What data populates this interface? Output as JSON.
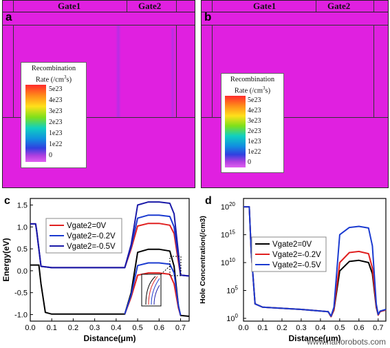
{
  "panels": {
    "a": {
      "label": "a",
      "gates": [
        "Gate1",
        "Gate2"
      ]
    },
    "b": {
      "label": "b",
      "gates": [
        "Gate1",
        "Gate2"
      ]
    }
  },
  "colorbar": {
    "title_line1": "Recombination",
    "title_line2": "Rate (/cm",
    "title_sup": "3",
    "title_end": "s)",
    "ticks": [
      "5e23",
      "4e23",
      "3e23",
      "2e23",
      "1e23",
      "1e22",
      "0"
    ],
    "colors": [
      "#ff2a2a",
      "#ff8c1a",
      "#ffe01a",
      "#7fe01a",
      "#10d0c0",
      "#1090e0",
      "#3040e0",
      "#b040e0"
    ]
  },
  "colors": {
    "device_fill": "#e020e0",
    "red": "#e02020",
    "blue_dark": "#1a1aa8",
    "blue": "#1a3ad0",
    "black": "#000000"
  },
  "watermark": "www.nanorobots.com",
  "chart_data": [
    {
      "panel": "c",
      "type": "line",
      "xlabel": "Distance(μm)",
      "ylabel": "Energy(eV)",
      "xlim": [
        0.0,
        0.74
      ],
      "ylim": [
        -1.15,
        1.65
      ],
      "xticks": [
        "0.0",
        "0.1",
        "0.2",
        "0.3",
        "0.4",
        "0.5",
        "0.6",
        "0.7"
      ],
      "yticks": [
        "-1.0",
        "-0.5",
        "0.0",
        "0.5",
        "1.0",
        "1.5"
      ],
      "legend": [
        "Vgate2=0V",
        "Vgate2=-0.2V",
        "Vgate2=-0.5V"
      ],
      "legend_colors": [
        "#e02020",
        "#1a3ad0",
        "#1a1aa8"
      ],
      "series": [
        {
          "group": "conduction",
          "color": "#e02020",
          "x": [
            0,
            0.025,
            0.03,
            0.05,
            0.1,
            0.3,
            0.44,
            0.47,
            0.5,
            0.55,
            0.6,
            0.65,
            0.67,
            0.69,
            0.7,
            0.74
          ],
          "y": [
            1.07,
            1.07,
            0.9,
            0.1,
            0.07,
            0.07,
            0.07,
            0.5,
            1.02,
            1.08,
            1.08,
            1.04,
            0.85,
            0.2,
            -0.1,
            -0.12
          ]
        },
        {
          "group": "conduction",
          "color": "#1a3ad0",
          "x": [
            0,
            0.025,
            0.03,
            0.05,
            0.1,
            0.3,
            0.44,
            0.47,
            0.5,
            0.55,
            0.6,
            0.65,
            0.67,
            0.69,
            0.7,
            0.74
          ],
          "y": [
            1.07,
            1.07,
            0.9,
            0.1,
            0.07,
            0.07,
            0.07,
            0.55,
            1.2,
            1.27,
            1.27,
            1.24,
            1.0,
            0.3,
            -0.1,
            -0.12
          ]
        },
        {
          "group": "conduction",
          "color": "#1a1aa8",
          "x": [
            0,
            0.025,
            0.03,
            0.05,
            0.1,
            0.3,
            0.44,
            0.47,
            0.5,
            0.55,
            0.6,
            0.65,
            0.67,
            0.69,
            0.7,
            0.74
          ],
          "y": [
            1.07,
            1.07,
            0.9,
            0.1,
            0.07,
            0.07,
            0.07,
            0.6,
            1.5,
            1.57,
            1.57,
            1.54,
            1.3,
            0.4,
            -0.1,
            -0.12
          ]
        },
        {
          "group": "valence",
          "color": "#000000",
          "x": [
            0,
            0.04,
            0.05,
            0.07,
            0.1,
            0.3,
            0.44,
            0.47,
            0.5,
            0.55,
            0.6,
            0.65,
            0.67,
            0.69,
            0.7,
            0.74
          ],
          "y": [
            0.13,
            0.13,
            -0.3,
            -0.95,
            -0.99,
            -0.99,
            -0.99,
            -0.5,
            0.42,
            0.49,
            0.49,
            0.45,
            0.1,
            -0.8,
            -1.02,
            -1.04
          ]
        },
        {
          "group": "valence",
          "color": "#e02020",
          "x": [
            0.44,
            0.47,
            0.5,
            0.55,
            0.6,
            0.65,
            0.67,
            0.69,
            0.7
          ],
          "y": [
            -0.99,
            -0.6,
            -0.1,
            -0.05,
            -0.05,
            -0.08,
            -0.3,
            -0.85,
            -1.02
          ]
        },
        {
          "group": "valence",
          "color": "#1a3ad0",
          "x": [
            0.44,
            0.47,
            0.5,
            0.55,
            0.6,
            0.65,
            0.67,
            0.69,
            0.7
          ],
          "y": [
            -0.99,
            -0.55,
            0.12,
            0.18,
            0.18,
            0.15,
            -0.05,
            -0.8,
            -1.02
          ]
        }
      ]
    },
    {
      "panel": "d",
      "type": "line",
      "xlabel": "Distance(μm)",
      "ylabel": "Hole Concentration(/cm3)",
      "yscale": "log",
      "xlim": [
        0.0,
        0.74
      ],
      "ylim": [
        -0.5,
        21.5
      ],
      "xticks": [
        "0.0",
        "0.1",
        "0.2",
        "0.3",
        "0.4",
        "0.5",
        "0.6",
        "0.7"
      ],
      "yticks": [
        "10^0",
        "10^5",
        "10^10",
        "10^15",
        "10^20"
      ],
      "legend": [
        "Vgate2=0V",
        "Vgate2=-0.2V",
        "Vgate2=-0.5V"
      ],
      "legend_colors": [
        "#000000",
        "#e02020",
        "#1a3ad0"
      ],
      "series": [
        {
          "name": "Vgate2=0V",
          "color": "#000000",
          "x": [
            0,
            0.03,
            0.04,
            0.06,
            0.1,
            0.3,
            0.44,
            0.455,
            0.47,
            0.5,
            0.55,
            0.6,
            0.65,
            0.67,
            0.69,
            0.7,
            0.71,
            0.74
          ],
          "y": [
            20,
            20,
            12,
            2.6,
            2.0,
            1.6,
            1.2,
            0.3,
            1.5,
            8.5,
            10.2,
            10.4,
            10.0,
            8.0,
            2.0,
            0.6,
            1.2,
            1.5
          ]
        },
        {
          "name": "Vgate2=-0.2V",
          "color": "#e02020",
          "x": [
            0,
            0.03,
            0.04,
            0.06,
            0.1,
            0.3,
            0.44,
            0.455,
            0.47,
            0.5,
            0.55,
            0.6,
            0.65,
            0.67,
            0.69,
            0.7,
            0.71,
            0.74
          ],
          "y": [
            20,
            20,
            12,
            2.6,
            2.0,
            1.6,
            1.2,
            0.3,
            1.6,
            10.0,
            11.8,
            12.0,
            11.6,
            9.0,
            2.2,
            0.6,
            1.2,
            1.5
          ]
        },
        {
          "name": "Vgate2=-0.5V",
          "color": "#1a3ad0",
          "x": [
            0,
            0.03,
            0.04,
            0.06,
            0.1,
            0.3,
            0.44,
            0.455,
            0.47,
            0.5,
            0.55,
            0.6,
            0.65,
            0.67,
            0.69,
            0.7,
            0.71,
            0.74
          ],
          "y": [
            20,
            20,
            12,
            2.6,
            2.0,
            1.6,
            1.2,
            0.4,
            2.0,
            15.0,
            16.3,
            16.5,
            16.2,
            13.0,
            2.6,
            0.7,
            1.3,
            1.6
          ]
        }
      ]
    }
  ]
}
